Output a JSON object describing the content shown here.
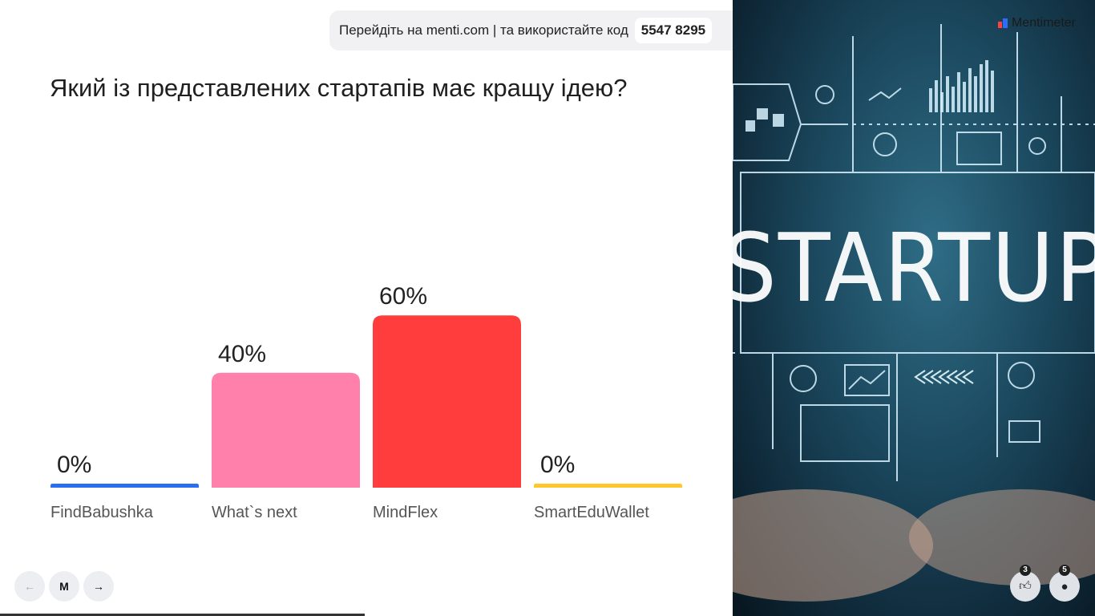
{
  "join": {
    "instruction": "Перейдіть на menti.com | та використайте код",
    "code": "5547 8295"
  },
  "question": "Який із представлених стартапів має кращу ідею?",
  "chart_data": {
    "type": "bar",
    "categories": [
      "FindBabushka",
      "What`s next",
      "MindFlex",
      "SmartEduWallet"
    ],
    "values": [
      0,
      40,
      60,
      0
    ],
    "value_labels": [
      "0%",
      "40%",
      "60%",
      "0%"
    ],
    "colors": [
      "#2b6ef2",
      "#ff80aa",
      "#ff3d3d",
      "#ffc72b"
    ],
    "ylim": [
      0,
      100
    ]
  },
  "image_panel": {
    "brand": "Mentimeter",
    "image_text": "STARTUP"
  },
  "nav": {
    "prev_icon": "arrow-left-icon",
    "logo_icon": "mentimeter-m-icon",
    "next_icon": "arrow-right-icon"
  },
  "stats": {
    "reactions_count": "3",
    "participants_count": "5"
  }
}
